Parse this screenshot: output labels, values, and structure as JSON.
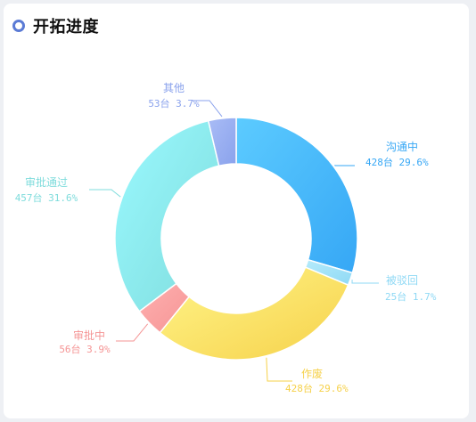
{
  "header": {
    "title": "开拓进度",
    "icon": "ring-icon",
    "accent": "#5b7bd5"
  },
  "chart_data": {
    "type": "pie",
    "style": "donut",
    "title": "开拓进度",
    "legend": "none",
    "slices": [
      {
        "name": "沟通中",
        "count": "428台",
        "percent": "29.6%",
        "value": 29.6,
        "color": "#36a7f5",
        "light": "#5ccbff"
      },
      {
        "name": "被驳回",
        "count": "25台",
        "percent": "1.7%",
        "value": 1.7,
        "color": "#8fd9f5",
        "light": "#b5ebfb"
      },
      {
        "name": "作废",
        "count": "428台",
        "percent": "29.6%",
        "value": 29.6,
        "color": "#f6d14a",
        "light": "#fff58a"
      },
      {
        "name": "审批中",
        "count": "56台",
        "percent": "3.9%",
        "value": 3.9,
        "color": "#f59595",
        "light": "#ffb0b0"
      },
      {
        "name": "审批通过",
        "count": "457台",
        "percent": "31.6%",
        "value": 31.6,
        "color": "#7fdcdc",
        "light": "#9af9ff"
      },
      {
        "name": "其他",
        "count": "53台",
        "percent": "3.7%",
        "value": 3.7,
        "color": "#8aa2ec",
        "light": "#a9bcf6"
      }
    ]
  }
}
